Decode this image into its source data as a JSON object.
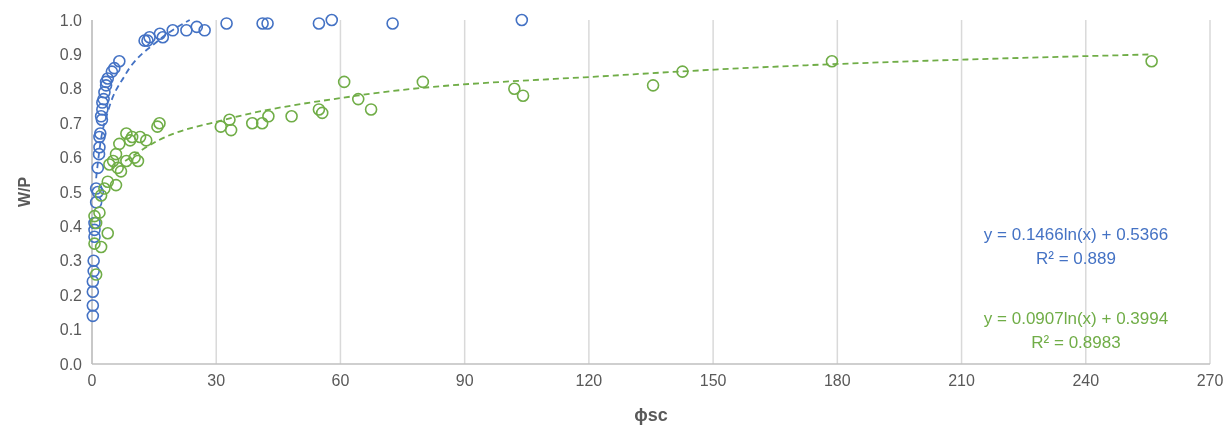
{
  "chart_data": {
    "type": "scatter",
    "xlabel": "ϕsc",
    "ylabel": "W/P",
    "xlim": [
      0,
      270
    ],
    "xticks": [
      0,
      30,
      60,
      90,
      120,
      150,
      180,
      210,
      240,
      270
    ],
    "ylim": [
      0,
      1.0
    ],
    "yticks": [
      {
        "value": 0,
        "label": "0.0"
      },
      {
        "value": 0.1,
        "label": "0.1"
      },
      {
        "value": 0.2,
        "label": "0.2"
      },
      {
        "value": 0.3,
        "label": "0.3"
      },
      {
        "value": 0.4,
        "label": "0.4"
      },
      {
        "value": 0.5,
        "label": "0.5"
      },
      {
        "value": 0.6,
        "label": "0.6"
      },
      {
        "value": 0.7,
        "label": "0.7"
      },
      {
        "value": 0.8,
        "label": "0.8"
      },
      {
        "value": 0.9,
        "label": "0.9"
      },
      {
        "value": 1.0,
        "label": "1.0"
      }
    ],
    "grid": "x",
    "marker": "circle",
    "annotations": [
      "y = 0.1466ln(x) + 0.5366",
      "R² = 0.889",
      "y = 0.0907ln(x) + 0.3994",
      "R² = 0.8983"
    ],
    "series": [
      {
        "color": "#4472c4",
        "x": [
          0.2,
          0.2,
          0.2,
          0.2,
          0.4,
          0.4,
          0.6,
          0.6,
          0.6,
          1.0,
          1.0,
          1.4,
          1.4,
          1.7,
          1.8,
          1.8,
          2.0,
          2.4,
          2.2,
          2.5,
          2.5,
          2.8,
          3.0,
          3.4,
          3.4,
          3.8,
          4.8,
          5.4,
          6.6,
          12.7,
          13.4,
          13.9,
          16.4,
          17.1,
          19.5,
          22.8,
          25.3,
          27.2,
          32.5,
          41.2,
          42.4,
          54.8,
          57.9,
          72.6,
          103.8
        ],
        "values": [
          0.14,
          0.17,
          0.21,
          0.24,
          0.27,
          0.3,
          0.37,
          0.39,
          0.41,
          0.47,
          0.51,
          0.5,
          0.57,
          0.61,
          0.63,
          0.66,
          0.67,
          0.71,
          0.72,
          0.74,
          0.76,
          0.77,
          0.79,
          0.81,
          0.82,
          0.83,
          0.85,
          0.86,
          0.88,
          0.94,
          0.94,
          0.95,
          0.96,
          0.95,
          0.97,
          0.97,
          0.98,
          0.97,
          0.99,
          0.99,
          0.99,
          0.99,
          1.0,
          0.99,
          1.0
        ]
      },
      {
        "color": "#70ad47",
        "x": [
          0.6,
          1.0,
          0.6,
          1.0,
          1.8,
          2.2,
          3.8,
          2.2,
          3.0,
          3.8,
          5.8,
          7.0,
          6.2,
          4.2,
          5.1,
          8.3,
          11.1,
          10.3,
          5.8,
          6.6,
          9.2,
          13.1,
          9.7,
          11.6,
          8.3,
          15.8,
          16.3,
          31.1,
          33.2,
          33.6,
          38.7,
          41.1,
          42.6,
          48.2,
          54.8,
          55.6,
          60.9,
          64.3,
          67.4,
          79.9,
          102.0,
          104.1,
          135.5,
          142.6,
          178.7,
          255.9
        ],
        "values": [
          0.35,
          0.26,
          0.43,
          0.41,
          0.44,
          0.34,
          0.38,
          0.49,
          0.51,
          0.53,
          0.52,
          0.56,
          0.57,
          0.58,
          0.59,
          0.59,
          0.59,
          0.6,
          0.61,
          0.64,
          0.65,
          0.65,
          0.66,
          0.66,
          0.67,
          0.69,
          0.7,
          0.69,
          0.71,
          0.68,
          0.7,
          0.7,
          0.72,
          0.72,
          0.74,
          0.73,
          0.82,
          0.77,
          0.74,
          0.82,
          0.8,
          0.78,
          0.81,
          0.85,
          0.88,
          0.88
        ]
      },
      {
        "type": "line",
        "color": "#4472c4",
        "line_style": "dashed",
        "marker": "none",
        "x": [
          1,
          2,
          4,
          8,
          16,
          23.6
        ],
        "values": [
          0.54,
          0.64,
          0.74,
          0.84,
          0.94,
          1.0
        ]
      },
      {
        "type": "line",
        "color": "#70ad47",
        "line_style": "dashed",
        "marker": "none",
        "x": [
          8,
          16,
          32,
          64,
          128,
          256
        ],
        "values": [
          0.59,
          0.65,
          0.71,
          0.78,
          0.84,
          0.9
        ]
      }
    ]
  }
}
